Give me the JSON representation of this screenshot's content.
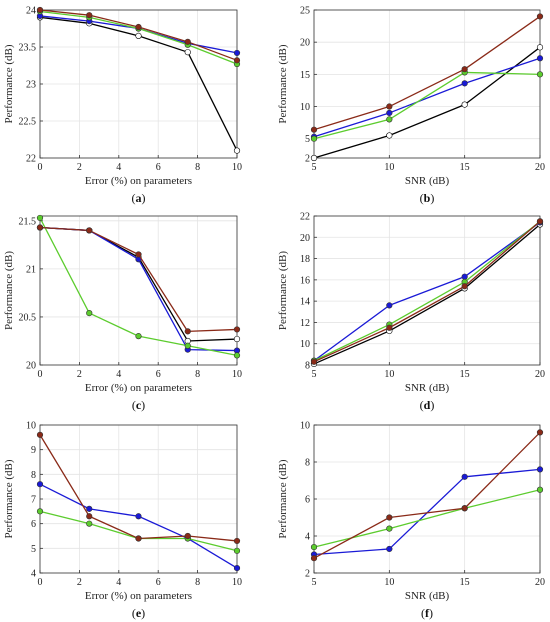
{
  "colors": {
    "black": "#000000",
    "blue": "#1a1ad6",
    "green": "#5ccc2e",
    "red": "#8a2a18"
  },
  "chart_data": [
    {
      "type": "line",
      "panel_label": "(a)",
      "xlabel": "Error (%) on parameters",
      "ylabel": "Performance (dB)",
      "xlim": [
        0,
        10
      ],
      "ylim": [
        22,
        24
      ],
      "xticks": [
        0,
        2,
        4,
        6,
        8,
        10
      ],
      "yticks": [
        22,
        22.5,
        23,
        23.5,
        24
      ],
      "yticklabels": [
        "22",
        "22.5",
        "23",
        "23.5",
        "24"
      ],
      "grid": true,
      "x": [
        0,
        2.5,
        5,
        7.5,
        10
      ],
      "series": [
        {
          "color": "black",
          "marker": "hollow",
          "values": [
            23.9,
            23.82,
            23.65,
            23.43,
            22.1
          ]
        },
        {
          "color": "blue",
          "marker": "filled",
          "values": [
            23.92,
            23.85,
            23.75,
            23.55,
            23.42
          ]
        },
        {
          "color": "green",
          "marker": "filled",
          "values": [
            23.98,
            23.9,
            23.75,
            23.53,
            23.27
          ]
        },
        {
          "color": "red",
          "marker": "filled",
          "values": [
            24.0,
            23.93,
            23.77,
            23.57,
            23.32
          ]
        }
      ]
    },
    {
      "type": "line",
      "panel_label": "(b)",
      "xlabel": "SNR (dB)",
      "ylabel": "Performance (dB)",
      "xlim": [
        5,
        20
      ],
      "ylim": [
        2,
        25
      ],
      "xticks": [
        5,
        10,
        15,
        20
      ],
      "yticks": [
        2,
        5,
        10,
        15,
        20,
        25
      ],
      "yticklabels": [
        "2",
        "5",
        "10",
        "15",
        "20",
        "25"
      ],
      "grid": true,
      "x": [
        5,
        10,
        15,
        20
      ],
      "series": [
        {
          "color": "black",
          "marker": "hollow",
          "values": [
            2.0,
            5.5,
            10.3,
            19.2
          ]
        },
        {
          "color": "blue",
          "marker": "filled",
          "values": [
            5.3,
            9.0,
            13.6,
            17.5
          ]
        },
        {
          "color": "green",
          "marker": "filled",
          "values": [
            5.0,
            8.0,
            15.3,
            15.0
          ]
        },
        {
          "color": "red",
          "marker": "filled",
          "values": [
            6.4,
            10.0,
            15.8,
            24.0
          ]
        }
      ]
    },
    {
      "type": "line",
      "panel_label": "(c)",
      "xlabel": "Error (%) on parameters",
      "ylabel": "Performance (dB)",
      "xlim": [
        0,
        10
      ],
      "ylim": [
        20,
        21.55
      ],
      "xticks": [
        0,
        2,
        4,
        6,
        8,
        10
      ],
      "yticks": [
        20,
        20.5,
        21,
        21.5
      ],
      "yticklabels": [
        "20",
        "20.5",
        "21",
        "21.5"
      ],
      "grid": true,
      "x": [
        0,
        2.5,
        5,
        7.5,
        10
      ],
      "series": [
        {
          "color": "black",
          "marker": "hollow",
          "values": [
            21.43,
            21.4,
            21.12,
            20.25,
            20.27
          ]
        },
        {
          "color": "blue",
          "marker": "filled",
          "values": [
            21.43,
            21.4,
            21.1,
            20.16,
            20.15
          ]
        },
        {
          "color": "green",
          "marker": "filled",
          "values": [
            21.53,
            20.54,
            20.3,
            20.2,
            20.1
          ]
        },
        {
          "color": "red",
          "marker": "filled",
          "values": [
            21.43,
            21.4,
            21.15,
            20.35,
            20.37
          ]
        }
      ]
    },
    {
      "type": "line",
      "panel_label": "(d)",
      "xlabel": "SNR (dB)",
      "ylabel": "Performance (dB)",
      "xlim": [
        5,
        20
      ],
      "ylim": [
        8,
        22
      ],
      "xticks": [
        5,
        10,
        15,
        20
      ],
      "yticks": [
        8,
        10,
        12,
        14,
        16,
        18,
        20,
        22
      ],
      "yticklabels": [
        "8",
        "10",
        "12",
        "14",
        "16",
        "18",
        "20",
        "22"
      ],
      "grid": true,
      "x": [
        5,
        10,
        15,
        20
      ],
      "series": [
        {
          "color": "black",
          "marker": "hollow",
          "values": [
            8.1,
            11.2,
            15.2,
            21.2
          ]
        },
        {
          "color": "blue",
          "marker": "filled",
          "values": [
            8.4,
            13.6,
            16.3,
            21.4
          ]
        },
        {
          "color": "green",
          "marker": "filled",
          "values": [
            8.4,
            11.8,
            15.8,
            21.5
          ]
        },
        {
          "color": "red",
          "marker": "filled",
          "values": [
            8.3,
            11.5,
            15.4,
            21.5
          ]
        }
      ]
    },
    {
      "type": "line",
      "panel_label": "(e)",
      "xlabel": "Error (%) on parameters",
      "ylabel": "Performance (dB)",
      "xlim": [
        0,
        10
      ],
      "ylim": [
        4,
        10
      ],
      "xticks": [
        0,
        2,
        4,
        6,
        8,
        10
      ],
      "yticks": [
        4,
        5,
        6,
        7,
        8,
        9,
        10
      ],
      "yticklabels": [
        "4",
        "5",
        "6",
        "7",
        "8",
        "9",
        "10"
      ],
      "grid": true,
      "x": [
        0,
        2.5,
        5,
        7.5,
        10
      ],
      "series": [
        {
          "color": "blue",
          "marker": "filled",
          "values": [
            7.6,
            6.6,
            6.3,
            5.4,
            4.2
          ]
        },
        {
          "color": "green",
          "marker": "filled",
          "values": [
            6.5,
            6.0,
            5.4,
            5.4,
            4.9
          ]
        },
        {
          "color": "red",
          "marker": "filled",
          "values": [
            9.6,
            6.3,
            5.4,
            5.5,
            5.3
          ]
        }
      ]
    },
    {
      "type": "line",
      "panel_label": "(f)",
      "xlabel": "SNR (dB)",
      "ylabel": "Performance (dB)",
      "xlim": [
        5,
        20
      ],
      "ylim": [
        2,
        10
      ],
      "xticks": [
        5,
        10,
        15,
        20
      ],
      "yticks": [
        2,
        4,
        6,
        8,
        10
      ],
      "yticklabels": [
        "2",
        "4",
        "6",
        "8",
        "10"
      ],
      "grid": true,
      "x": [
        5,
        10,
        15,
        20
      ],
      "series": [
        {
          "color": "blue",
          "marker": "filled",
          "values": [
            3.0,
            3.3,
            7.2,
            7.6
          ]
        },
        {
          "color": "green",
          "marker": "filled",
          "values": [
            3.4,
            4.4,
            5.5,
            6.5
          ]
        },
        {
          "color": "red",
          "marker": "filled",
          "values": [
            2.8,
            5.0,
            5.5,
            9.6
          ]
        }
      ]
    }
  ]
}
